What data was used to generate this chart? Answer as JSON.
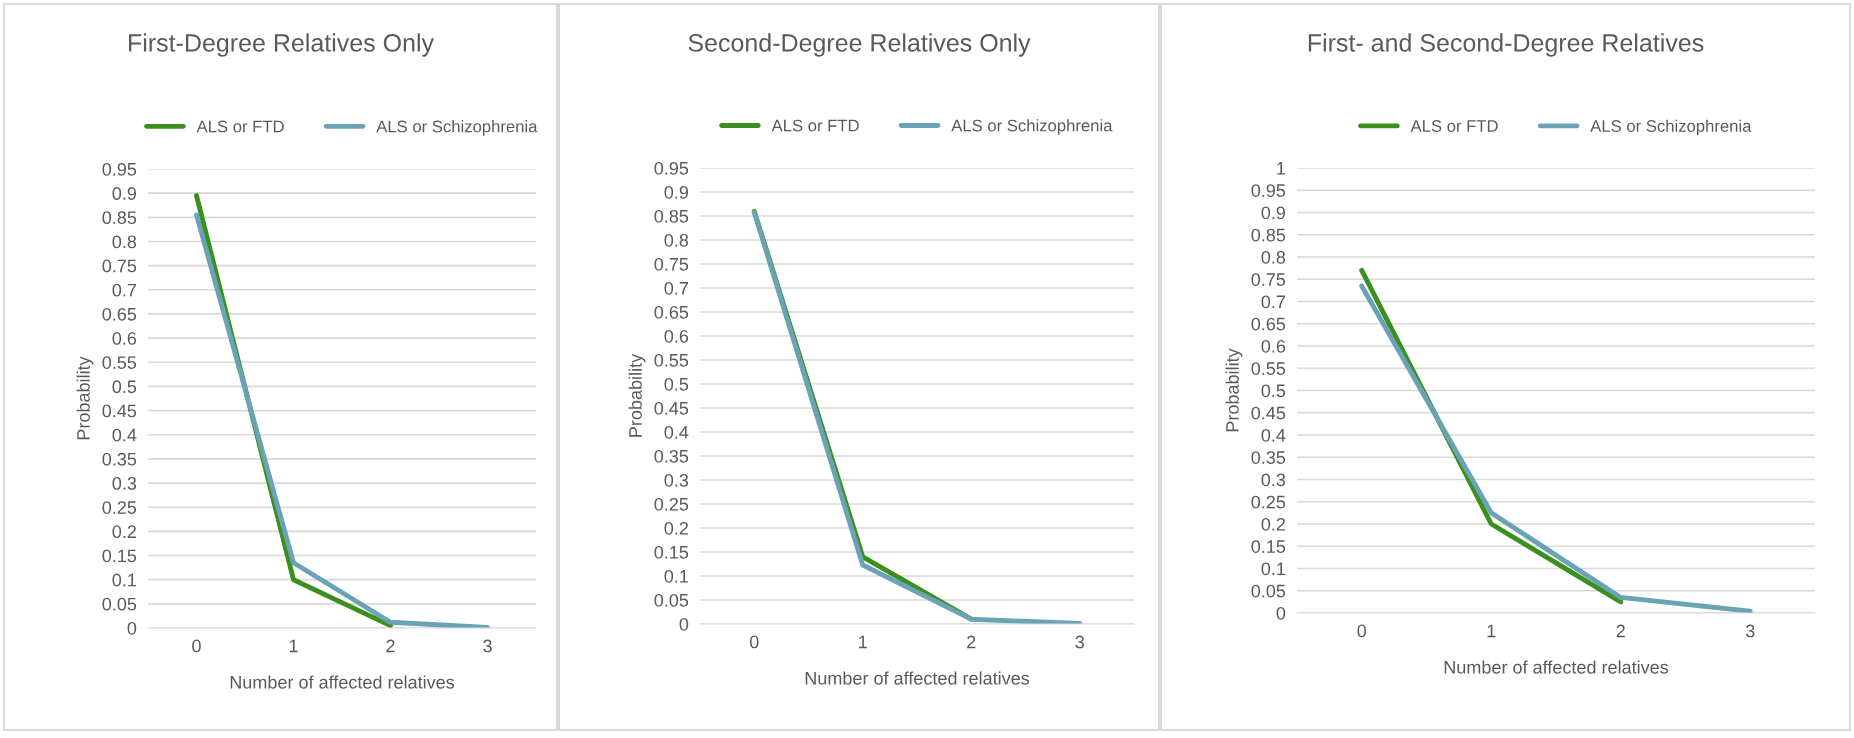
{
  "chart_data": [
    {
      "type": "line",
      "title": "First-Degree Relatives Only",
      "xlabel": "Number of affected relatives",
      "ylabel": "Probability",
      "categories": [
        "0",
        "1",
        "2",
        "3"
      ],
      "series": [
        {
          "name": "ALS or FTD",
          "color": "#3a8f1e",
          "values": [
            0.895,
            0.1,
            0.005,
            null
          ]
        },
        {
          "name": "ALS or Schizophrenia",
          "color": "#6aa3b5",
          "values": [
            0.855,
            0.135,
            0.012,
            0.001
          ]
        }
      ],
      "ylim": [
        0,
        0.95
      ],
      "yticks": [
        0,
        0.05,
        0.1,
        0.15,
        0.2,
        0.25,
        0.3,
        0.35,
        0.4,
        0.45,
        0.5,
        0.55,
        0.6,
        0.65,
        0.7,
        0.75,
        0.8,
        0.85,
        0.9,
        0.95
      ],
      "grid": "y",
      "legend": "top",
      "marker": "none",
      "line_style": "solid"
    },
    {
      "type": "line",
      "title": "Second-Degree Relatives Only",
      "xlabel": "Number of affected relatives",
      "ylabel": "Probability",
      "categories": [
        "0",
        "1",
        "2",
        "3"
      ],
      "series": [
        {
          "name": "ALS or FTD",
          "color": "#3a8f1e",
          "values": [
            0.86,
            0.14,
            0.01,
            null
          ]
        },
        {
          "name": "ALS or Schizophrenia",
          "color": "#6aa3b5",
          "values": [
            0.858,
            0.123,
            0.01,
            0.001
          ]
        }
      ],
      "ylim": [
        0,
        0.95
      ],
      "yticks": [
        0,
        0.05,
        0.1,
        0.15,
        0.2,
        0.25,
        0.3,
        0.35,
        0.4,
        0.45,
        0.5,
        0.55,
        0.6,
        0.65,
        0.7,
        0.75,
        0.8,
        0.85,
        0.9,
        0.95
      ],
      "grid": "y",
      "legend": "top",
      "marker": "none",
      "line_style": "solid"
    },
    {
      "type": "line",
      "title": "First- and Second-Degree Relatives",
      "xlabel": "Number of affected relatives",
      "ylabel": "Probability",
      "categories": [
        "0",
        "1",
        "2",
        "3"
      ],
      "series": [
        {
          "name": "ALS or FTD",
          "color": "#3a8f1e",
          "values": [
            0.77,
            0.2,
            0.025,
            null
          ]
        },
        {
          "name": "ALS or Schizophrenia",
          "color": "#6aa3b5",
          "values": [
            0.735,
            0.225,
            0.035,
            0.004
          ]
        }
      ],
      "ylim": [
        0,
        1
      ],
      "yticks": [
        0,
        0.05,
        0.1,
        0.15,
        0.2,
        0.25,
        0.3,
        0.35,
        0.4,
        0.45,
        0.5,
        0.55,
        0.6,
        0.65,
        0.7,
        0.75,
        0.8,
        0.85,
        0.9,
        0.95,
        1
      ],
      "grid": "y",
      "legend": "top",
      "marker": "none",
      "line_style": "solid"
    }
  ]
}
